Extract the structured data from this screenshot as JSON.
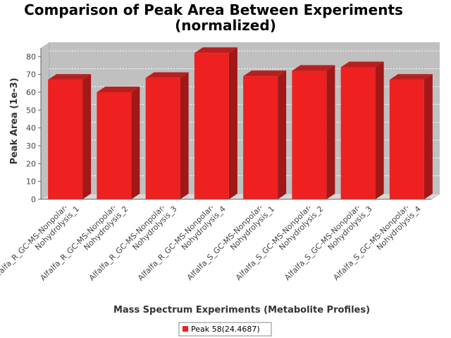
{
  "chart_data": {
    "type": "bar",
    "title_line1": "Comparison of Peak Area Between Experiments",
    "title_line2": "(normalized)",
    "xlabel": "Mass Spectrum Experiments (Metabolite Profiles)",
    "ylabel": "Peak Area (1e-3)",
    "ylim": [
      0,
      88
    ],
    "yticks": [
      0,
      10,
      20,
      30,
      40,
      50,
      60,
      70,
      80
    ],
    "grid": true,
    "legend_position": "bottom",
    "categories": [
      [
        "Alfalfa_R_GC-MS-Nonpolar-",
        "Nohydrolysis_1"
      ],
      [
        "Alfalfa_R_GC-MS-Nonpolar-",
        "Nohydrolysis_2"
      ],
      [
        "Alfalfa_R_GC-MS-Nonpolar-",
        "Nohydrolysis_3"
      ],
      [
        "Alfalfa_R_GC-MS-Nonpolar-",
        "Nohydrolysis_4"
      ],
      [
        "Alfalfa_S_GC-MS-Nonpolar-",
        "Nohydrolysis_1"
      ],
      [
        "Alfalfa_S_GC-MS-Nonpolar-",
        "Nohydrolysis_2"
      ],
      [
        "Alfalfa_S_GC-MS-Nonpolar-",
        "Nohydrolysis_3"
      ],
      [
        "Alfalfa_S_GC-MS-Nonpolar-",
        "Nohydrolysis_4"
      ]
    ],
    "series": [
      {
        "name": "Peak 58(24.4687)",
        "color": "#ee2020",
        "values": [
          67,
          60,
          68,
          82,
          69,
          72,
          74,
          67
        ]
      }
    ]
  }
}
